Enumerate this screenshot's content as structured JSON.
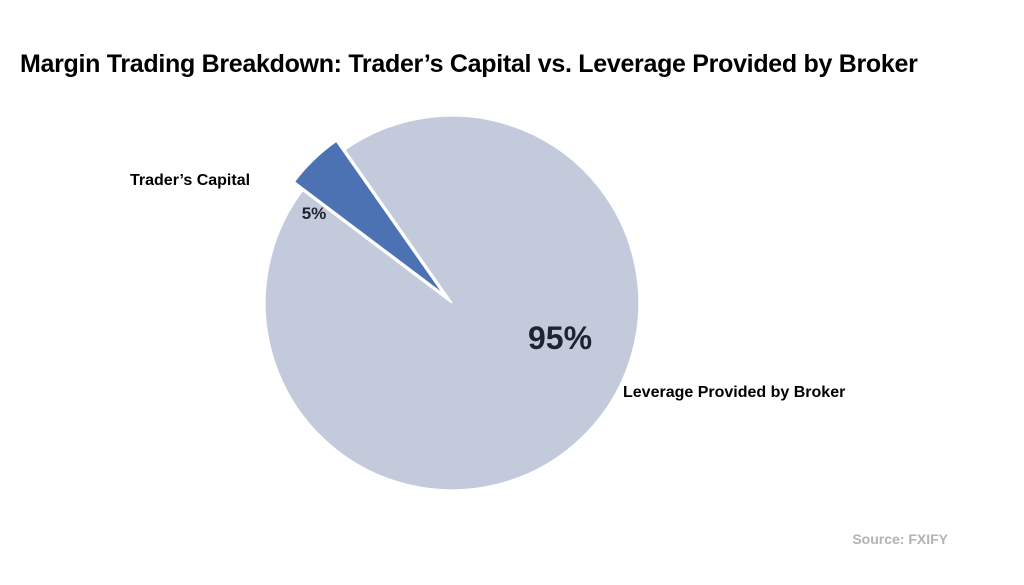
{
  "chart_data": {
    "type": "pie",
    "title": "Margin Trading Breakdown: Trader’s Capital vs. Leverage Provided by Broker",
    "slices": [
      {
        "label": "Trader’s Capital",
        "value": 5,
        "value_label": "5%",
        "color": "#4d72b4",
        "exploded": true
      },
      {
        "label": "Leverage Provided by Broker",
        "value": 95,
        "value_label": "95%",
        "color": "#c3cadb",
        "exploded": false
      }
    ],
    "legend": "none",
    "source": "Source: FXIFY"
  }
}
